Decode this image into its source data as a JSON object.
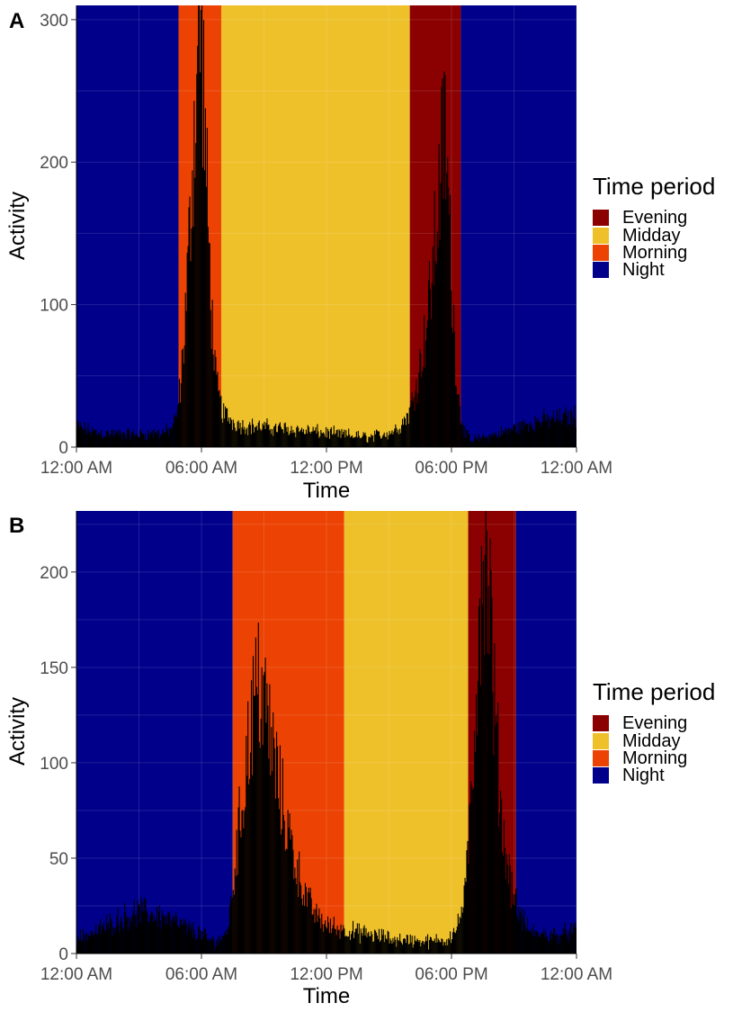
{
  "figure": {
    "legend_title": "Time period",
    "legend_items": [
      {
        "label": "Evening",
        "color": "#8B0000"
      },
      {
        "label": "Midday",
        "color": "#EEC12B"
      },
      {
        "label": "Morning",
        "color": "#EC4304"
      },
      {
        "label": "Night",
        "color": "#00008B"
      }
    ]
  },
  "chart_data": [
    {
      "type": "bar",
      "panel_label": "A",
      "title": "",
      "xlabel": "Time",
      "ylabel": "Activity",
      "x_unit": "hours since midnight",
      "xlim": [
        0,
        24
      ],
      "ylim": [
        0,
        310
      ],
      "x_ticks": [
        0,
        6,
        12,
        18,
        24
      ],
      "x_tick_labels": [
        "12:00 AM",
        "06:00 AM",
        "12:00 PM",
        "06:00 PM",
        "12:00 AM"
      ],
      "y_ticks": [
        0,
        100,
        200,
        300
      ],
      "y_tick_labels": [
        "0",
        "100",
        "200",
        "300"
      ],
      "grid": true,
      "periods": [
        {
          "name": "Night",
          "start": 0,
          "end": 4.9
        },
        {
          "name": "Morning",
          "start": 4.9,
          "end": 6.95
        },
        {
          "name": "Midday",
          "start": 6.95,
          "end": 16.0
        },
        {
          "name": "Evening",
          "start": 16.0,
          "end": 18.45
        },
        {
          "name": "Night",
          "start": 18.45,
          "end": 24
        }
      ],
      "activity_profile": {
        "x": [
          0,
          0.5,
          1,
          2,
          3,
          4,
          4.5,
          4.8,
          5.0,
          5.2,
          5.4,
          5.6,
          5.8,
          5.95,
          6.1,
          6.3,
          6.5,
          6.7,
          7.0,
          7.5,
          8,
          10,
          12,
          14,
          15,
          15.5,
          16,
          16.4,
          16.8,
          17.1,
          17.3,
          17.5,
          17.65,
          17.8,
          18.0,
          18.2,
          18.4,
          18.7,
          19,
          20,
          21,
          22,
          23,
          24
        ],
        "y": [
          15,
          12,
          10,
          9,
          9,
          10,
          12,
          20,
          45,
          85,
          140,
          210,
          270,
          300,
          255,
          160,
          90,
          45,
          25,
          18,
          15,
          13,
          10,
          7,
          10,
          14,
          25,
          50,
          85,
          125,
          160,
          195,
          225,
          190,
          120,
          60,
          25,
          8,
          5,
          8,
          13,
          18,
          20,
          22
        ]
      }
    },
    {
      "type": "bar",
      "panel_label": "B",
      "title": "",
      "xlabel": "Time",
      "ylabel": "Activity",
      "x_unit": "hours since midnight",
      "xlim": [
        0,
        24
      ],
      "ylim": [
        0,
        232
      ],
      "x_ticks": [
        0,
        6,
        12,
        18,
        24
      ],
      "x_tick_labels": [
        "12:00 AM",
        "06:00 AM",
        "12:00 PM",
        "06:00 PM",
        "12:00 AM"
      ],
      "y_ticks": [
        0,
        50,
        100,
        150,
        200
      ],
      "y_tick_labels": [
        "0",
        "50",
        "100",
        "150",
        "200"
      ],
      "grid": true,
      "periods": [
        {
          "name": "Night",
          "start": 0,
          "end": 7.5
        },
        {
          "name": "Morning",
          "start": 7.5,
          "end": 12.85
        },
        {
          "name": "Midday",
          "start": 12.85,
          "end": 18.8
        },
        {
          "name": "Evening",
          "start": 18.8,
          "end": 21.1
        },
        {
          "name": "Night",
          "start": 21.1,
          "end": 24
        }
      ],
      "activity_profile": {
        "x": [
          0,
          1,
          2,
          3,
          4,
          5,
          6,
          6.5,
          7,
          7.3,
          7.6,
          8.0,
          8.4,
          8.8,
          9.2,
          9.6,
          10.0,
          10.5,
          11.0,
          11.5,
          12,
          13,
          14,
          15,
          16,
          17,
          17.8,
          18.3,
          18.7,
          19.0,
          19.3,
          19.55,
          19.8,
          20.1,
          20.5,
          20.9,
          21.2,
          21.6,
          22,
          23,
          24
        ],
        "y": [
          8,
          12,
          18,
          22,
          20,
          15,
          10,
          6,
          8,
          15,
          45,
          85,
          125,
          142,
          120,
          95,
          72,
          48,
          30,
          20,
          15,
          12,
          10,
          8,
          7,
          6,
          8,
          14,
          35,
          95,
          175,
          225,
          200,
          120,
          60,
          35,
          22,
          14,
          10,
          10,
          12
        ]
      }
    }
  ]
}
